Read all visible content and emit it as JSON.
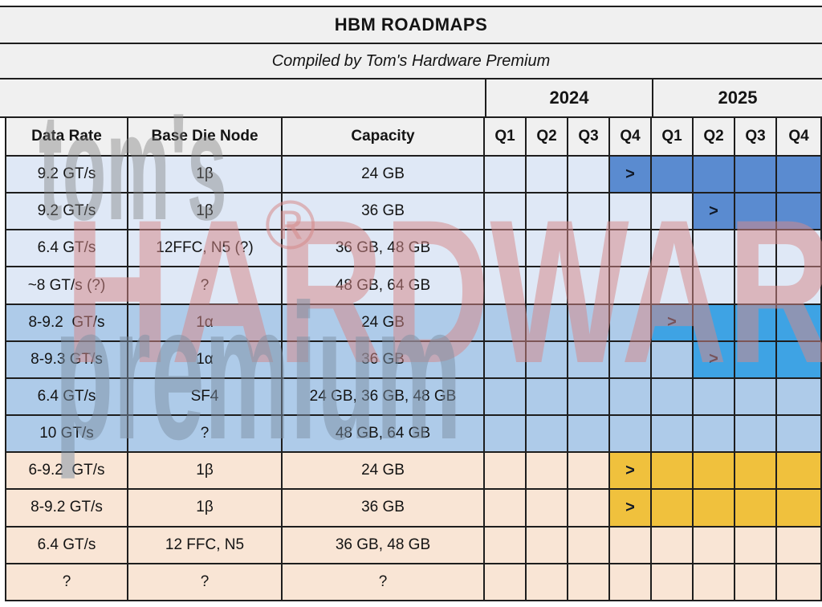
{
  "chart_data": {
    "type": "table",
    "title": "HBM ROADMAPS",
    "subtitle": "Compiled by Tom's Hardware Premium",
    "columns": [
      "Data Rate",
      "Base Die Node",
      "Capacity"
    ],
    "years": [
      "2024",
      "2025"
    ],
    "quarter_labels": [
      "Q1",
      "Q2",
      "Q3",
      "Q4",
      "Q1",
      "Q2",
      "Q3",
      "Q4"
    ],
    "arrow": ">",
    "rows": [
      {
        "data_rate": "9.2 GT/s",
        "base_die_node": "1β",
        "capacity": "24 GB",
        "group": "blue_light",
        "quarters": [
          "",
          "",
          "",
          "arrow",
          "fill",
          "fill",
          "fill",
          "fill"
        ]
      },
      {
        "data_rate": "9.2 GT/s",
        "base_die_node": "1β",
        "capacity": "36 GB",
        "group": "blue_light",
        "quarters": [
          "",
          "",
          "",
          "",
          "",
          "arrow",
          "fill",
          "fill"
        ]
      },
      {
        "data_rate": "6.4 GT/s",
        "base_die_node": "12FFC, N5 (?)",
        "capacity": "36 GB, 48 GB",
        "group": "blue_light",
        "quarters": [
          "",
          "",
          "",
          "",
          "",
          "",
          "",
          ""
        ]
      },
      {
        "data_rate": "~8 GT/s (?)",
        "base_die_node": "?",
        "capacity": "48 GB, 64 GB",
        "group": "blue_light",
        "quarters": [
          "",
          "",
          "",
          "",
          "",
          "",
          "",
          ""
        ]
      },
      {
        "data_rate": "8-9.2  GT/s",
        "base_die_node": "1α",
        "capacity": "24 GB",
        "group": "blue_mid",
        "quarters": [
          "",
          "",
          "",
          "",
          "arrow",
          "fill",
          "fill",
          "fill"
        ]
      },
      {
        "data_rate": "8-9.3 GT/s",
        "base_die_node": "1α",
        "capacity": "36 GB",
        "group": "blue_mid",
        "quarters": [
          "",
          "",
          "",
          "",
          "",
          "arrow",
          "fill",
          "fill"
        ]
      },
      {
        "data_rate": "6.4 GT/s",
        "base_die_node": "SF4",
        "capacity": "24 GB, 36 GB, 48 GB",
        "group": "blue_mid",
        "quarters": [
          "",
          "",
          "",
          "",
          "",
          "",
          "",
          ""
        ]
      },
      {
        "data_rate": "10 GT/s",
        "base_die_node": "?",
        "capacity": "48 GB, 64 GB",
        "group": "blue_mid",
        "quarters": [
          "",
          "",
          "",
          "",
          "",
          "",
          "",
          ""
        ]
      },
      {
        "data_rate": "6-9.2  GT/s",
        "base_die_node": "1β",
        "capacity": "24 GB",
        "group": "peach",
        "quarters": [
          "",
          "",
          "",
          "arrow",
          "fill",
          "fill",
          "fill",
          "fill"
        ]
      },
      {
        "data_rate": "8-9.2 GT/s",
        "base_die_node": "1β",
        "capacity": "36 GB",
        "group": "peach",
        "quarters": [
          "",
          "",
          "",
          "arrow",
          "fill",
          "fill",
          "fill",
          "fill"
        ]
      },
      {
        "data_rate": "6.4 GT/s",
        "base_die_node": "12 FFC, N5",
        "capacity": "36 GB, 48 GB",
        "group": "peach",
        "quarters": [
          "",
          "",
          "",
          "",
          "",
          "",
          "",
          ""
        ]
      },
      {
        "data_rate": "?",
        "base_die_node": "?",
        "capacity": "?",
        "group": "peach",
        "quarters": [
          "",
          "",
          "",
          "",
          "",
          "",
          "",
          ""
        ]
      }
    ],
    "colors": {
      "band_bg": "#f0f0f0",
      "grid_line": "#1e1e1e",
      "row_blue_light_bg": "#dfe8f6",
      "row_blue_mid_bg": "#aecbe9",
      "row_peach_bg": "#f9e5d5",
      "highlight_blue": "#5a8bd0",
      "highlight_cyan": "#3ea3e4",
      "highlight_yellow": "#f0c13d",
      "watermark_gray": "#808080",
      "watermark_pink": "#d68a8a",
      "watermark_bluegray": "#7d91a5"
    },
    "legend_position": "none",
    "grid": true
  },
  "watermark": {
    "line1": "tom's",
    "line2": "HARDWARE",
    "registered_symbol": "®",
    "line3": "premium"
  }
}
